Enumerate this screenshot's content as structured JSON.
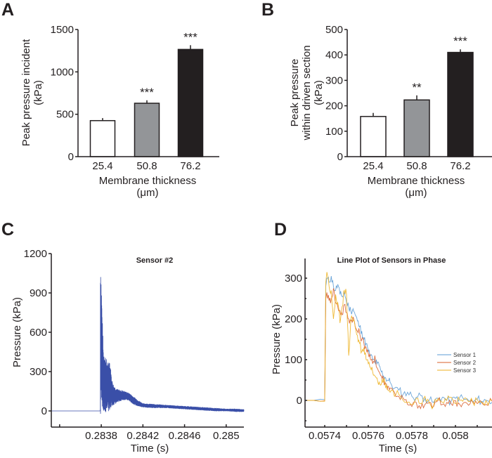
{
  "panels": {
    "A": "A",
    "B": "B",
    "C": "C",
    "D": "D"
  },
  "chart_data": [
    {
      "id": "A",
      "type": "bar",
      "title": "",
      "xlabel": "Membrane thickness",
      "xlabel_unit": "(μm)",
      "ylabel_line1": "Peak pressure incident",
      "ylabel_line2": "(kPa)",
      "categories": [
        "25.4",
        "50.8",
        "76.2"
      ],
      "values": [
        425,
        630,
        1265
      ],
      "errors": [
        30,
        35,
        50
      ],
      "significance": [
        "",
        "***",
        "***"
      ],
      "bar_colors": [
        "#ffffff",
        "#939598",
        "#231f20"
      ],
      "ylim": [
        0,
        1500
      ],
      "yticks": [
        0,
        500,
        1000,
        1500
      ]
    },
    {
      "id": "B",
      "type": "bar",
      "title": "",
      "xlabel": "Membrane thickness",
      "xlabel_unit": "(μm)",
      "ylabel_line1": "Peak pressure",
      "ylabel_line2": "within driven section",
      "ylabel_line3": "(kPa)",
      "categories": [
        "25.4",
        "50.8",
        "76.2"
      ],
      "values": [
        158,
        223,
        410
      ],
      "errors": [
        14,
        18,
        12
      ],
      "significance": [
        "",
        "**",
        "***"
      ],
      "bar_colors": [
        "#ffffff",
        "#939598",
        "#231f20"
      ],
      "ylim": [
        0,
        500
      ],
      "yticks": [
        0,
        100,
        200,
        300,
        400,
        500
      ]
    },
    {
      "id": "C",
      "type": "line",
      "title": "Sensor #2",
      "xlabel": "Time (s)",
      "ylabel": "Pressure (kPa)",
      "xlim": [
        0.28332,
        0.28517
      ],
      "ylim": [
        -130,
        1200
      ],
      "xticks": [
        0.2834,
        0.2838,
        0.2842,
        0.2846,
        0.285
      ],
      "xtick_labels": [
        "",
        "0.2838",
        "0.2842",
        "0.2846",
        "0.285"
      ],
      "yticks": [
        0,
        300,
        600,
        900,
        1200
      ],
      "series": [
        {
          "name": "Sensor #2",
          "color": "#3a4fa8",
          "envelope": {
            "x": [
              0.28332,
              0.28379,
              0.283791,
              0.2838,
              0.28381,
              0.28382,
              0.28384,
              0.28386,
              0.28388,
              0.2839,
              0.28392,
              0.28395,
              0.28398,
              0.28401,
              0.28404,
              0.28407,
              0.2841,
              0.28415,
              0.2842,
              0.2843,
              0.2844,
              0.2845,
              0.2846,
              0.2847,
              0.2848,
              0.2849,
              0.285,
              0.2851,
              0.28517
            ],
            "upper": [
              0,
              0,
              1100,
              900,
              650,
              420,
              380,
              330,
              360,
              230,
              180,
              160,
              150,
              150,
              140,
              130,
              110,
              80,
              55,
              50,
              45,
              40,
              35,
              30,
              25,
              20,
              15,
              15,
              10
            ],
            "lower": [
              0,
              0,
              0,
              200,
              100,
              30,
              20,
              50,
              20,
              60,
              60,
              70,
              80,
              90,
              90,
              80,
              60,
              40,
              30,
              25,
              25,
              20,
              15,
              10,
              5,
              0,
              0,
              -5,
              -5
            ]
          }
        }
      ]
    },
    {
      "id": "D",
      "type": "line",
      "title": "Line Plot of Sensors in Phase",
      "xlabel": "Time (s)",
      "ylabel": "Pressure (kPa)",
      "xlim": [
        0.05731,
        0.05817
      ],
      "ylim": [
        -65,
        350
      ],
      "xticks": [
        0.0574,
        0.0575,
        0.0576,
        0.0577,
        0.0578,
        0.0579,
        0.058,
        0.0581
      ],
      "xtick_labels": [
        "0.0574",
        "",
        "0.0576",
        "",
        "0.0578",
        "",
        "0.058",
        ""
      ],
      "yticks": [
        0,
        100,
        200,
        300
      ],
      "yminor_ticks": [
        -50,
        50,
        150,
        250
      ],
      "legend_position": "center-right",
      "series": [
        {
          "name": "Sensor 1",
          "color": "#5b9bd5",
          "x": [
            0.05731,
            0.05735,
            0.05738,
            0.0574,
            0.057405,
            0.05741,
            0.05742,
            0.05743,
            0.05744,
            0.05745,
            0.05746,
            0.05747,
            0.05748,
            0.05749,
            0.0575,
            0.05751,
            0.05752,
            0.05753,
            0.05754,
            0.05755,
            0.05756,
            0.05757,
            0.05758,
            0.05759,
            0.0576,
            0.05761,
            0.05762,
            0.05763,
            0.05764,
            0.05765,
            0.05766,
            0.05767,
            0.05768,
            0.05769,
            0.0577,
            0.05772,
            0.05774,
            0.05776,
            0.05778,
            0.0578,
            0.05782,
            0.05784,
            0.05786,
            0.05788,
            0.0579,
            0.05792,
            0.05794,
            0.05796,
            0.05798,
            0.058,
            0.05802,
            0.05804,
            0.05806,
            0.05808,
            0.0581,
            0.05812,
            0.05814,
            0.05817
          ],
          "y": [
            0,
            0,
            3,
            2,
            280,
            300,
            290,
            305,
            280,
            270,
            285,
            260,
            255,
            265,
            240,
            230,
            220,
            225,
            210,
            195,
            180,
            170,
            150,
            140,
            120,
            110,
            100,
            95,
            90,
            85,
            70,
            60,
            55,
            50,
            45,
            30,
            25,
            15,
            20,
            10,
            8,
            12,
            5,
            0,
            -5,
            5,
            8,
            0,
            -3,
            5,
            8,
            2,
            0,
            -5,
            3,
            -2,
            0,
            -5
          ]
        },
        {
          "name": "Sensor 2",
          "color": "#d95f2b",
          "x": [
            0.05731,
            0.05735,
            0.05738,
            0.0574,
            0.057405,
            0.05741,
            0.05742,
            0.05743,
            0.05744,
            0.05745,
            0.05746,
            0.05747,
            0.05748,
            0.05749,
            0.0575,
            0.05751,
            0.05752,
            0.05753,
            0.05754,
            0.05755,
            0.05756,
            0.05757,
            0.05758,
            0.05759,
            0.0576,
            0.05761,
            0.05762,
            0.05763,
            0.05764,
            0.05765,
            0.05766,
            0.05767,
            0.05768,
            0.05769,
            0.0577,
            0.05772,
            0.05774,
            0.05776,
            0.05778,
            0.0578,
            0.05782,
            0.05784,
            0.05786,
            0.05788,
            0.0579,
            0.05792,
            0.05794,
            0.05796,
            0.05798,
            0.058,
            0.05802,
            0.05804,
            0.05806,
            0.05808,
            0.0581,
            0.05812,
            0.05814,
            0.05817
          ],
          "y": [
            0,
            0,
            -2,
            -1,
            250,
            265,
            245,
            250,
            275,
            240,
            230,
            220,
            210,
            235,
            215,
            200,
            195,
            205,
            180,
            170,
            165,
            150,
            140,
            130,
            115,
            100,
            90,
            110,
            80,
            70,
            60,
            50,
            40,
            35,
            30,
            20,
            10,
            5,
            -10,
            -15,
            -5,
            -20,
            -10,
            -5,
            -15,
            0,
            -10,
            -5,
            -8,
            0,
            -10,
            -5,
            -12,
            -3,
            -8,
            -5,
            -10,
            -2
          ]
        },
        {
          "name": "Sensor 3",
          "color": "#edb120",
          "x": [
            0.05731,
            0.05735,
            0.05738,
            0.0574,
            0.057405,
            0.05741,
            0.05742,
            0.05743,
            0.05744,
            0.05745,
            0.05746,
            0.05747,
            0.05748,
            0.05749,
            0.0575,
            0.05751,
            0.05752,
            0.05753,
            0.05754,
            0.05755,
            0.05756,
            0.05757,
            0.05758,
            0.05759,
            0.0576,
            0.05761,
            0.05762,
            0.05763,
            0.05764,
            0.05765,
            0.05766,
            0.05767,
            0.05768,
            0.05769,
            0.0577,
            0.05772,
            0.05774,
            0.05776,
            0.05778,
            0.0578,
            0.05782,
            0.05784,
            0.05786,
            0.05788,
            0.0579,
            0.05792,
            0.05794,
            0.05796,
            0.05798,
            0.058,
            0.05802,
            0.05804,
            0.05806,
            0.05808,
            0.0581,
            0.05812,
            0.05814,
            0.05817
          ],
          "y": [
            0,
            0,
            -2,
            -2,
            290,
            315,
            280,
            270,
            200,
            260,
            240,
            190,
            230,
            270,
            260,
            110,
            200,
            195,
            180,
            160,
            140,
            120,
            130,
            100,
            90,
            80,
            70,
            60,
            55,
            45,
            40,
            50,
            30,
            25,
            20,
            10,
            15,
            0,
            -5,
            -10,
            5,
            -8,
            10,
            -5,
            -12,
            5,
            -5,
            0,
            8,
            -8,
            0,
            5,
            -3,
            -6,
            2,
            -4,
            0,
            0
          ]
        }
      ]
    }
  ]
}
